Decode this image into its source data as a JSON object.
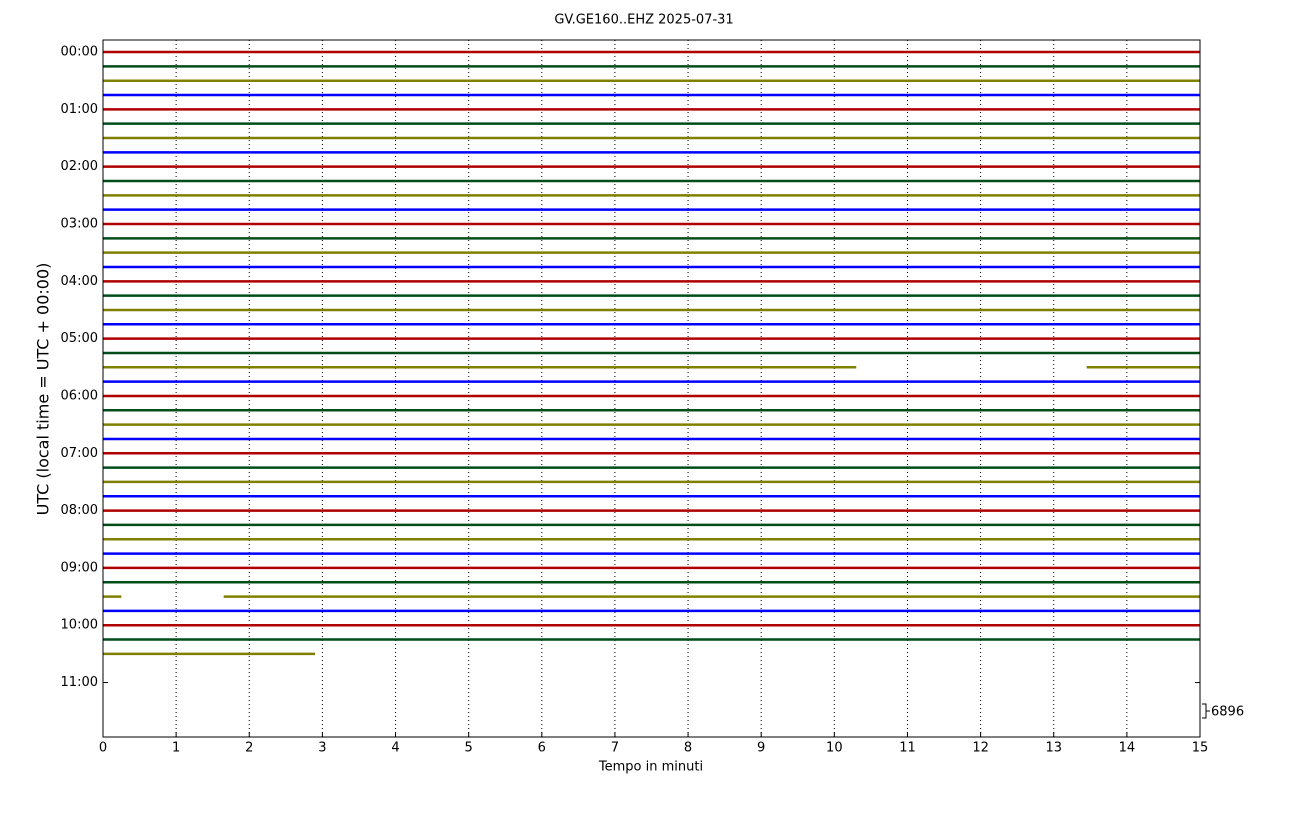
{
  "chart_data": {
    "type": "helicorder",
    "title": "GV.GE160..EHZ 2025-07-31",
    "x_label": "Tempo in minuti",
    "y_label": "UTC (local time = UTC + 00:00)",
    "xlim": [
      0,
      15
    ],
    "xticks": [
      0,
      1,
      2,
      3,
      4,
      5,
      6,
      7,
      8,
      9,
      10,
      11,
      12,
      13,
      14,
      15
    ],
    "grid": true,
    "ylim": [
      -0.21,
      11.95
    ],
    "y_inverted": true,
    "yticks": [
      {
        "value": 0,
        "label": "00:00"
      },
      {
        "value": 1,
        "label": "01:00"
      },
      {
        "value": 2,
        "label": "02:00"
      },
      {
        "value": 3,
        "label": "03:00"
      },
      {
        "value": 4,
        "label": "04:00"
      },
      {
        "value": 5,
        "label": "05:00"
      },
      {
        "value": 6,
        "label": "06:00"
      },
      {
        "value": 7,
        "label": "07:00"
      },
      {
        "value": 8,
        "label": "08:00"
      },
      {
        "value": 9,
        "label": "09:00"
      },
      {
        "value": 10,
        "label": "10:00"
      },
      {
        "value": 11,
        "label": "11:00"
      }
    ],
    "trace_colors": [
      "#b00000",
      "#004d1a",
      "#808000",
      "#0000ff"
    ],
    "traces": [
      {
        "y": 0,
        "x": [
          [
            0,
            15
          ]
        ]
      },
      {
        "y": 0.25,
        "x": [
          [
            0,
            15
          ]
        ]
      },
      {
        "y": 0.5,
        "x": [
          [
            0,
            15
          ]
        ]
      },
      {
        "y": 0.75,
        "x": [
          [
            0,
            15
          ]
        ]
      },
      {
        "y": 1,
        "x": [
          [
            0,
            15
          ]
        ]
      },
      {
        "y": 1.25,
        "x": [
          [
            0,
            15
          ]
        ]
      },
      {
        "y": 1.5,
        "x": [
          [
            0,
            15
          ]
        ]
      },
      {
        "y": 1.75,
        "x": [
          [
            0,
            15
          ]
        ]
      },
      {
        "y": 2,
        "x": [
          [
            0,
            15
          ]
        ]
      },
      {
        "y": 2.25,
        "x": [
          [
            0,
            15
          ]
        ]
      },
      {
        "y": 2.5,
        "x": [
          [
            0,
            15
          ]
        ]
      },
      {
        "y": 2.75,
        "x": [
          [
            0,
            15
          ]
        ]
      },
      {
        "y": 3,
        "x": [
          [
            0,
            15
          ]
        ]
      },
      {
        "y": 3.25,
        "x": [
          [
            0,
            15
          ]
        ]
      },
      {
        "y": 3.5,
        "x": [
          [
            0,
            15
          ]
        ]
      },
      {
        "y": 3.75,
        "x": [
          [
            0,
            15
          ]
        ]
      },
      {
        "y": 4,
        "x": [
          [
            0,
            15
          ]
        ]
      },
      {
        "y": 4.25,
        "x": [
          [
            0,
            15
          ]
        ]
      },
      {
        "y": 4.5,
        "x": [
          [
            0,
            15
          ]
        ]
      },
      {
        "y": 4.75,
        "x": [
          [
            0,
            15
          ]
        ]
      },
      {
        "y": 5,
        "x": [
          [
            0,
            15
          ]
        ]
      },
      {
        "y": 5.25,
        "x": [
          [
            0,
            15
          ]
        ]
      },
      {
        "y": 5.5,
        "x": [
          [
            0,
            10.3
          ],
          [
            13.45,
            15
          ]
        ]
      },
      {
        "y": 5.75,
        "x": [
          [
            0,
            15
          ]
        ]
      },
      {
        "y": 6,
        "x": [
          [
            0,
            15
          ]
        ]
      },
      {
        "y": 6.25,
        "x": [
          [
            0,
            15
          ]
        ]
      },
      {
        "y": 6.5,
        "x": [
          [
            0,
            15
          ]
        ]
      },
      {
        "y": 6.75,
        "x": [
          [
            0,
            15
          ]
        ]
      },
      {
        "y": 7,
        "x": [
          [
            0,
            15
          ]
        ]
      },
      {
        "y": 7.25,
        "x": [
          [
            0,
            15
          ]
        ]
      },
      {
        "y": 7.5,
        "x": [
          [
            0,
            15
          ]
        ]
      },
      {
        "y": 7.75,
        "x": [
          [
            0,
            15
          ]
        ]
      },
      {
        "y": 8,
        "x": [
          [
            0,
            15
          ]
        ]
      },
      {
        "y": 8.25,
        "x": [
          [
            0,
            15
          ]
        ]
      },
      {
        "y": 8.5,
        "x": [
          [
            0,
            15
          ]
        ]
      },
      {
        "y": 8.75,
        "x": [
          [
            0,
            15
          ]
        ]
      },
      {
        "y": 9,
        "x": [
          [
            0,
            15
          ]
        ]
      },
      {
        "y": 9.25,
        "x": [
          [
            0,
            15
          ]
        ]
      },
      {
        "y": 9.5,
        "x": [
          [
            0,
            0.25
          ],
          [
            1.65,
            15
          ]
        ]
      },
      {
        "y": 9.75,
        "x": [
          [
            0,
            15
          ]
        ]
      },
      {
        "y": 10,
        "x": [
          [
            0,
            15
          ]
        ]
      },
      {
        "y": 10.25,
        "x": [
          [
            0,
            15
          ]
        ]
      },
      {
        "y": 10.5,
        "x": [
          [
            0,
            2.9
          ]
        ]
      }
    ],
    "scale": 6896
  }
}
